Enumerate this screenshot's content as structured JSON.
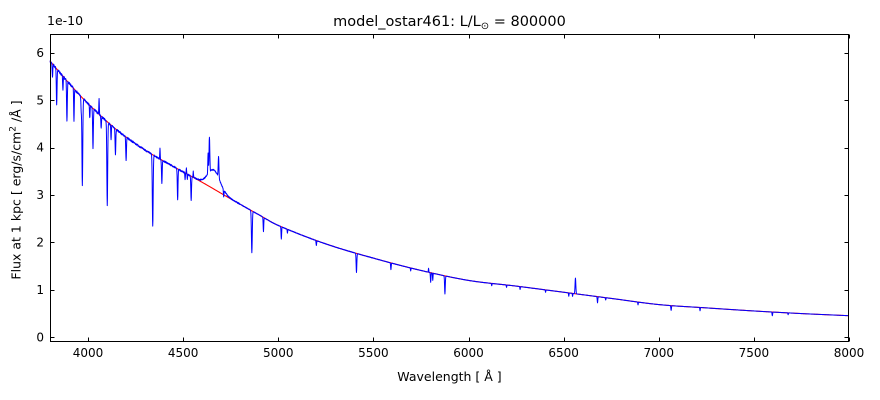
{
  "figure": {
    "background": "#ffffff"
  },
  "chart_data": {
    "type": "line",
    "title_parts": [
      "model_ostar461: L/L",
      "⊙",
      " = 800000"
    ],
    "xlabel": "Wavelength [ Å ]",
    "ylabel_parts": [
      "Flux at 1 kpc [ erg/s/cm",
      "2",
      " /Å ]"
    ],
    "y_offset_label": "1e-10",
    "xlim": [
      3800,
      8000
    ],
    "ylim": [
      -0.1,
      6.4
    ],
    "xticks": [
      4000,
      4500,
      5000,
      5500,
      6000,
      6500,
      7000,
      7500,
      8000
    ],
    "yticks": [
      0,
      1,
      2,
      3,
      4,
      5,
      6
    ],
    "grid": false,
    "legend": "none",
    "axis_color": "#000000",
    "tick_direction": "in",
    "units_scale": 1e-10,
    "series": [
      {
        "name": "continuum_fit",
        "color": "#ff0000",
        "style": "smooth continuum",
        "control_points": [
          [
            3800,
            5.83
          ],
          [
            3900,
            5.36
          ],
          [
            4000,
            4.93
          ],
          [
            4150,
            4.38
          ],
          [
            4300,
            3.95
          ],
          [
            4450,
            3.6
          ],
          [
            4600,
            3.27
          ],
          [
            4750,
            2.92
          ],
          [
            4900,
            2.58
          ],
          [
            5000,
            2.36
          ],
          [
            5250,
            1.97
          ],
          [
            5500,
            1.67
          ],
          [
            5750,
            1.41
          ],
          [
            6000,
            1.2
          ],
          [
            6250,
            1.08
          ],
          [
            6500,
            0.95
          ],
          [
            6750,
            0.82
          ],
          [
            7000,
            0.69
          ],
          [
            7250,
            0.62
          ],
          [
            7500,
            0.555
          ],
          [
            7750,
            0.5
          ],
          [
            8000,
            0.455
          ]
        ]
      },
      {
        "name": "model_spectrum",
        "color": "#0000ff",
        "style": "continuum + lines + noise",
        "noise_frac_blue": 0.0045,
        "noise_frac_red": 0.0025,
        "noise_split_wavelength": 4800,
        "absorption_lines": [
          [
            3813,
            0.28,
            1.5
          ],
          [
            3835,
            0.78,
            1.8
          ],
          [
            3868,
            0.3,
            1.5
          ],
          [
            3889,
            0.85,
            1.8
          ],
          [
            3926,
            0.7,
            1.5
          ],
          [
            3964,
            0.3,
            1.5
          ],
          [
            3970,
            1.85,
            2.2
          ],
          [
            4009,
            0.28,
            1.5
          ],
          [
            4026,
            0.85,
            1.8
          ],
          [
            4069,
            0.25,
            1.5
          ],
          [
            4101,
            1.75,
            2.2
          ],
          [
            4121,
            0.3,
            1.5
          ],
          [
            4144,
            0.55,
            1.8
          ],
          [
            4200,
            0.5,
            1.8
          ],
          [
            4340,
            1.52,
            2.2
          ],
          [
            4388,
            0.48,
            1.8
          ],
          [
            4471,
            0.65,
            1.8
          ],
          [
            4510,
            0.15,
            1.2
          ],
          [
            4522,
            0.12,
            1.2
          ],
          [
            4542,
            0.5,
            1.8
          ],
          [
            4713,
            0.15,
            1.5
          ],
          [
            4861,
            0.88,
            2.2
          ],
          [
            4922,
            0.3,
            1.5
          ],
          [
            5016,
            0.26,
            1.5
          ],
          [
            5048,
            0.08,
            1.2
          ],
          [
            5200,
            0.1,
            1.5
          ],
          [
            5411,
            0.4,
            1.8
          ],
          [
            5592,
            0.14,
            1.5
          ],
          [
            5696,
            0.06,
            1.2
          ],
          [
            5801,
            0.2,
            1.5
          ],
          [
            5812,
            0.15,
            1.2
          ],
          [
            5876,
            0.38,
            1.8
          ],
          [
            6122,
            0.05,
            1.2
          ],
          [
            6200,
            0.05,
            1.2
          ],
          [
            6271,
            0.06,
            1.2
          ],
          [
            6405,
            0.05,
            1.2
          ],
          [
            6527,
            0.07,
            1.2
          ],
          [
            6547,
            0.06,
            1.2
          ],
          [
            6678,
            0.13,
            1.5
          ],
          [
            6721,
            0.05,
            1.2
          ],
          [
            6891,
            0.06,
            1.2
          ],
          [
            7065,
            0.1,
            1.5
          ],
          [
            7217,
            0.07,
            1.2
          ],
          [
            7597,
            0.08,
            1.5
          ],
          [
            7680,
            0.04,
            1.2
          ]
        ],
        "emission_lines": [
          [
            4058,
            0.35,
            1.2
          ],
          [
            4378,
            0.22,
            1.2
          ],
          [
            4517,
            0.12,
            1.2
          ],
          [
            4553,
            0.12,
            1.2
          ],
          [
            4631,
            0.45,
            1.5
          ],
          [
            4638,
            0.75,
            2.0
          ],
          [
            4662,
            0.4,
            32.0
          ],
          [
            4686,
            0.45,
            1.8
          ],
          [
            5790,
            0.08,
            1.2
          ],
          [
            6562,
            0.33,
            2.0
          ]
        ]
      }
    ]
  }
}
